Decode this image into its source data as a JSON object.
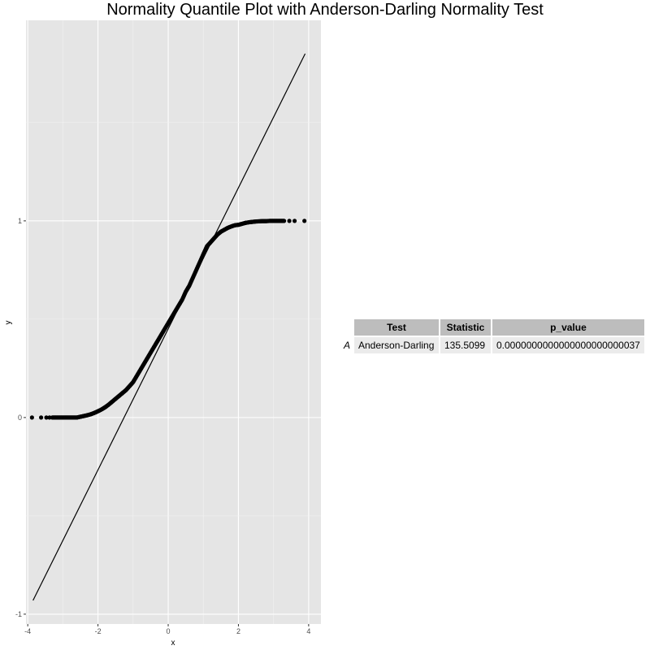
{
  "chart_data": {
    "type": "scatter",
    "title": "Normality Quantile Plot with Anderson-Darling Normality Test",
    "xlabel": "x",
    "ylabel": "y",
    "xlim": [
      -4.05,
      4.35
    ],
    "ylim": [
      -1.05,
      2.02
    ],
    "x_ticks": [
      -4,
      -2,
      0,
      2,
      4
    ],
    "x_tick_labels": [
      "-4",
      "-2",
      "0",
      "2",
      "4"
    ],
    "y_ticks": [
      -1,
      0,
      1
    ],
    "y_tick_labels": [
      "-1",
      "0",
      "1"
    ],
    "grid": true,
    "reference_line": {
      "x": [
        -3.85,
        3.9
      ],
      "y": [
        -0.93,
        1.85
      ]
    },
    "points": {
      "x": [
        -3.88,
        -3.62,
        -3.47,
        -3.38,
        -3.3,
        -3.2,
        -3.1,
        -3.0,
        -2.9,
        -2.8,
        -2.7,
        -2.6,
        -2.5,
        -2.4,
        -2.3,
        -2.2,
        -2.1,
        -2.0,
        -1.9,
        -1.8,
        -1.7,
        -1.6,
        -1.5,
        -1.4,
        -1.3,
        -1.2,
        -1.1,
        -1.0,
        -0.9,
        -0.8,
        -0.7,
        -0.6,
        -0.5,
        -0.4,
        -0.3,
        -0.2,
        -0.1,
        0.0,
        0.1,
        0.2,
        0.3,
        0.4,
        0.5,
        0.6,
        0.7,
        0.8,
        0.9,
        1.0,
        1.1,
        1.2,
        1.3,
        1.4,
        1.5,
        1.6,
        1.7,
        1.8,
        1.9,
        2.0,
        2.1,
        2.2,
        2.3,
        2.4,
        2.5,
        2.6,
        2.7,
        2.8,
        2.9,
        3.0,
        3.1,
        3.2,
        3.3,
        3.45,
        3.6,
        3.88
      ],
      "y": [
        0.0,
        0.0,
        0.0,
        0.0,
        0.0,
        0.0,
        0.0,
        0.0,
        0.0,
        0.0,
        0.0,
        0.0,
        0.004,
        0.008,
        0.012,
        0.017,
        0.024,
        0.032,
        0.041,
        0.052,
        0.065,
        0.08,
        0.095,
        0.11,
        0.125,
        0.14,
        0.16,
        0.18,
        0.21,
        0.24,
        0.27,
        0.3,
        0.33,
        0.36,
        0.39,
        0.42,
        0.45,
        0.48,
        0.51,
        0.54,
        0.57,
        0.6,
        0.64,
        0.67,
        0.71,
        0.75,
        0.79,
        0.83,
        0.87,
        0.89,
        0.91,
        0.93,
        0.945,
        0.955,
        0.965,
        0.972,
        0.978,
        0.98,
        0.985,
        0.99,
        0.993,
        0.995,
        0.997,
        0.998,
        0.999,
        0.999,
        1.0,
        1.0,
        1.0,
        1.0,
        1.0,
        1.0,
        1.0,
        1.0
      ]
    }
  },
  "table": {
    "headers": {
      "test": "Test",
      "statistic": "Statistic",
      "p_value": "p_value"
    },
    "row": {
      "name": "A",
      "test": "Anderson-Darling",
      "statistic": "135.5099",
      "p_value": "0.0000000000000000000000037"
    }
  }
}
